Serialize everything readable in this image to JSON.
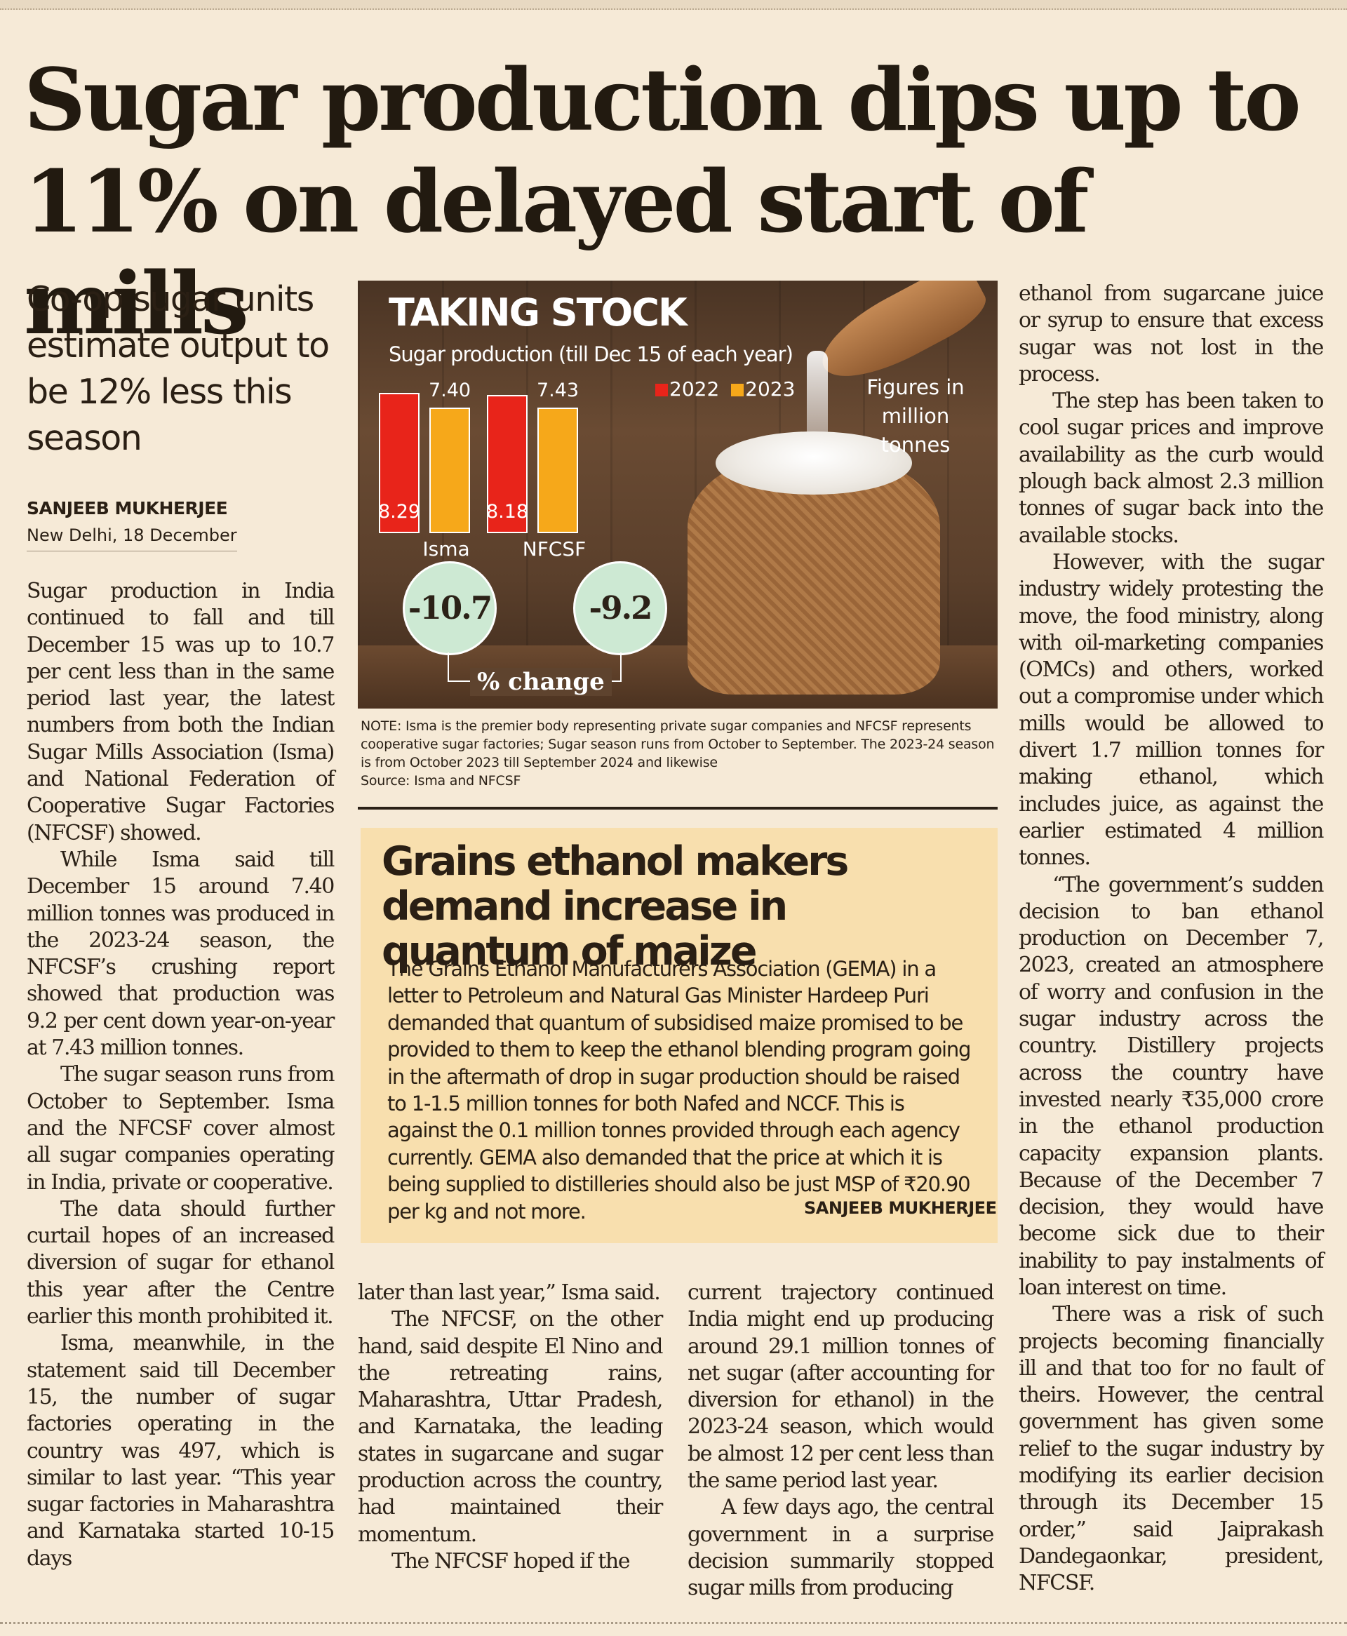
{
  "headline": "Sugar production dips up to 11% on delayed start of mills",
  "deck": "Co-op sugar units estimate output to be 12% less this season",
  "byline": {
    "author": "SANJEEB MUKHERJEE",
    "dateline": "New Delhi, 18 December"
  },
  "graphic": {
    "title": "TAKING STOCK",
    "subtitle": "Sugar production (till Dec 15 of each year)",
    "legend": [
      {
        "label": "2022",
        "color": "#e8241a"
      },
      {
        "label": "2023",
        "color": "#f6a81a"
      }
    ],
    "units_note": "Figures in million tonnes",
    "pct_change_label": "% change",
    "pct_change_values": [
      "-10.7",
      "-9.2"
    ],
    "note": "NOTE: Isma is the premier body representing private sugar companies and NFCSF represents cooperative sugar factories; Sugar season runs from October to September. The 2023-24 season is from October 2023 till September 2024 and likewise",
    "source": "Source: Isma and NFCSF"
  },
  "chart_data": {
    "type": "bar",
    "title": "TAKING STOCK",
    "subtitle": "Sugar production (till Dec 15 of each year)",
    "ylabel": "Figures in million tonnes",
    "categories": [
      "Isma",
      "NFCSF"
    ],
    "series": [
      {
        "name": "2022",
        "values": [
          8.29,
          8.18
        ],
        "color": "#e8241a"
      },
      {
        "name": "2023",
        "values": [
          7.4,
          7.43
        ],
        "color": "#f6a81a"
      }
    ],
    "value_labels": {
      "2022": [
        "8.29",
        "8.18"
      ],
      "2023": [
        "7.40",
        "7.43"
      ]
    },
    "pct_change": [
      -10.7,
      -9.2
    ],
    "ylim": [
      0,
      8.29
    ],
    "legend": "top-right",
    "grid": false
  },
  "col1": [
    "Sugar production in India continued to fall and till December 15 was up to 10.7 per cent less than in the same period last year, the latest numbers from both the Indian Sugar Mills Association (Isma) and National Federation of Cooperative Sugar Factories (NFCSF) showed.",
    "While Isma said till December 15 around 7.40 million tonnes was produced in the 2023-24 season, the NFCSF’s crushing report showed that production was 9.2 per cent down year-on-year at 7.43 million tonnes.",
    "The sugar season runs from October to September. Isma and the NFCSF cover almost all sugar companies operating in India, private or cooperative.",
    "The data should further curtail hopes of an increased diversion of sugar for ethanol this year after the Centre earlier this month prohibited it.",
    "Isma, meanwhile, in the statement said till December 15, the number of sugar factories operating in the country was 497, which is similar to last year. “This year sugar factories in Maharashtra and Karnataka started 10-15 days"
  ],
  "col2": [
    "later than last year,” Isma said.",
    "The NFCSF, on the other hand, said despite El Nino and the retreating rains, Maharashtra, Uttar Pradesh, and Karnataka, the leading states in sugarcane and sugar production across the country, had maintained their momentum.",
    "The NFCSF hoped if the"
  ],
  "col3": [
    "current trajectory continued India might end up producing around 29.1 million tonnes of net sugar (after accounting for diversion for ethanol) in the 2023-24 season, which would be almost 12 per cent less than the same period last year.",
    "A few days ago, the central government in a surprise decision summarily stopped sugar mills from producing"
  ],
  "col4": [
    "ethanol from sugarcane juice or syrup to ensure that excess sugar was not lost in the process.",
    "The step has been taken to cool sugar prices and improve availability as the curb would plough back almost 2.3 million tonnes of sugar back into the available stocks.",
    "However, with the sugar industry widely protesting the move, the food ministry, along with oil-marketing companies (OMCs) and others, worked out a compromise under which mills would be allowed to divert 1.7 million tonnes for making ethanol, which includes juice, as against the earlier estimated 4 million tonnes.",
    "“The government’s sudden decision to ban ethanol production on December 7, 2023, created an atmosphere of worry and confusion in the sugar industry across the country. Distillery projects across the country have invested nearly ₹35,000 crore in the ethanol production capacity expansion plants. Because of the December 7 decision, they would have become sick due to their inability to pay instalments of loan interest on time.",
    "There was a risk of such projects becoming financially ill and that too for no fault of theirs. However, the central government has given some relief to the sugar industry by modifying its earlier decision through its December 15 order,” said Jaiprakash Dandegaonkar, president, NFCSF."
  ],
  "sidebar": {
    "headline": "Grains ethanol makers demand increase in quantum of maize",
    "body": "The Grains Ethanol Manufacturers Association (GEMA) in a letter to Petroleum and Natural Gas Minister Hardeep Puri demanded that quantum of subsidised maize promised to be provided to them to keep the ethanol blending program going in the aftermath of drop in sugar production should be raised to 1-1.5 million tonnes for both Nafed and NCCF. This is against the 0.1 million tonnes provided through each agency currently. GEMA also demanded that the price at which it is being supplied to distilleries should also be just MSP of ₹20.90 per kg and not more.",
    "credit": "SANJEEB MUKHERJEE"
  }
}
